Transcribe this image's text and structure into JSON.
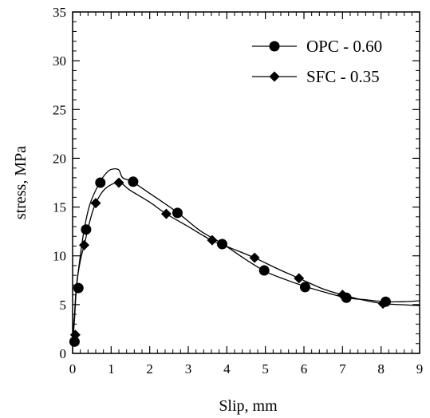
{
  "chart_data": {
    "type": "line",
    "xlabel": "Slip, mm",
    "ylabel": "stress, MPa",
    "xlim": [
      0,
      9
    ],
    "ylim": [
      0,
      35
    ],
    "x_ticks": [
      0,
      1,
      2,
      3,
      4,
      5,
      6,
      7,
      8,
      9
    ],
    "y_ticks": [
      0,
      5,
      10,
      15,
      20,
      25,
      30,
      35
    ],
    "grid": false,
    "legend_position": "top-right",
    "series": [
      {
        "name": "OPC - 0.60",
        "marker": "circle",
        "color": "#000000",
        "curve": [
          [
            0,
            1.0
          ],
          [
            0.05,
            3.5
          ],
          [
            0.1,
            6.7
          ],
          [
            0.2,
            10.0
          ],
          [
            0.3,
            12.7
          ],
          [
            0.45,
            15.3
          ],
          [
            0.7,
            17.5
          ],
          [
            0.9,
            18.6
          ],
          [
            1.05,
            18.9
          ],
          [
            1.2,
            18.8
          ],
          [
            1.3,
            18.0
          ],
          [
            1.55,
            17.6
          ],
          [
            2.0,
            16.4
          ],
          [
            2.7,
            14.5
          ],
          [
            3.3,
            12.6
          ],
          [
            3.9,
            11.2
          ],
          [
            4.5,
            9.6
          ],
          [
            5.0,
            8.4
          ],
          [
            5.5,
            7.6
          ],
          [
            6.0,
            6.9
          ],
          [
            6.6,
            6.2
          ],
          [
            7.1,
            5.7
          ],
          [
            7.6,
            5.5
          ],
          [
            8.1,
            5.3
          ],
          [
            8.6,
            5.3
          ],
          [
            9.0,
            5.4
          ]
        ],
        "points": [
          [
            0.05,
            1.2
          ],
          [
            0.15,
            6.7
          ],
          [
            0.35,
            12.7
          ],
          [
            0.72,
            17.5
          ],
          [
            1.57,
            17.6
          ],
          [
            2.72,
            14.4
          ],
          [
            3.88,
            11.2
          ],
          [
            4.97,
            8.5
          ],
          [
            6.03,
            6.8
          ],
          [
            7.1,
            5.7
          ],
          [
            8.12,
            5.3
          ]
        ]
      },
      {
        "name": "SFC - 0.35",
        "marker": "diamond",
        "color": "#000000",
        "curve": [
          [
            0,
            1.5
          ],
          [
            0.05,
            4.0
          ],
          [
            0.1,
            7.0
          ],
          [
            0.2,
            9.5
          ],
          [
            0.3,
            11.1
          ],
          [
            0.45,
            13.6
          ],
          [
            0.6,
            15.4
          ],
          [
            0.85,
            16.9
          ],
          [
            1.2,
            17.5
          ],
          [
            1.5,
            16.7
          ],
          [
            2.0,
            15.5
          ],
          [
            2.43,
            14.3
          ],
          [
            3.0,
            13.0
          ],
          [
            3.6,
            11.6
          ],
          [
            4.1,
            10.8
          ],
          [
            4.72,
            9.8
          ],
          [
            5.3,
            8.7
          ],
          [
            5.87,
            7.7
          ],
          [
            6.5,
            6.6
          ],
          [
            7.0,
            6.0
          ],
          [
            7.5,
            5.5
          ],
          [
            8.05,
            5.1
          ],
          [
            8.5,
            5.0
          ],
          [
            9.0,
            4.9
          ]
        ],
        "points": [
          [
            0.07,
            1.9
          ],
          [
            0.3,
            11.1
          ],
          [
            0.6,
            15.4
          ],
          [
            1.2,
            17.5
          ],
          [
            2.43,
            14.3
          ],
          [
            3.62,
            11.6
          ],
          [
            4.72,
            9.8
          ],
          [
            5.87,
            7.7
          ],
          [
            7.0,
            6.0
          ],
          [
            8.05,
            5.1
          ]
        ]
      }
    ]
  }
}
